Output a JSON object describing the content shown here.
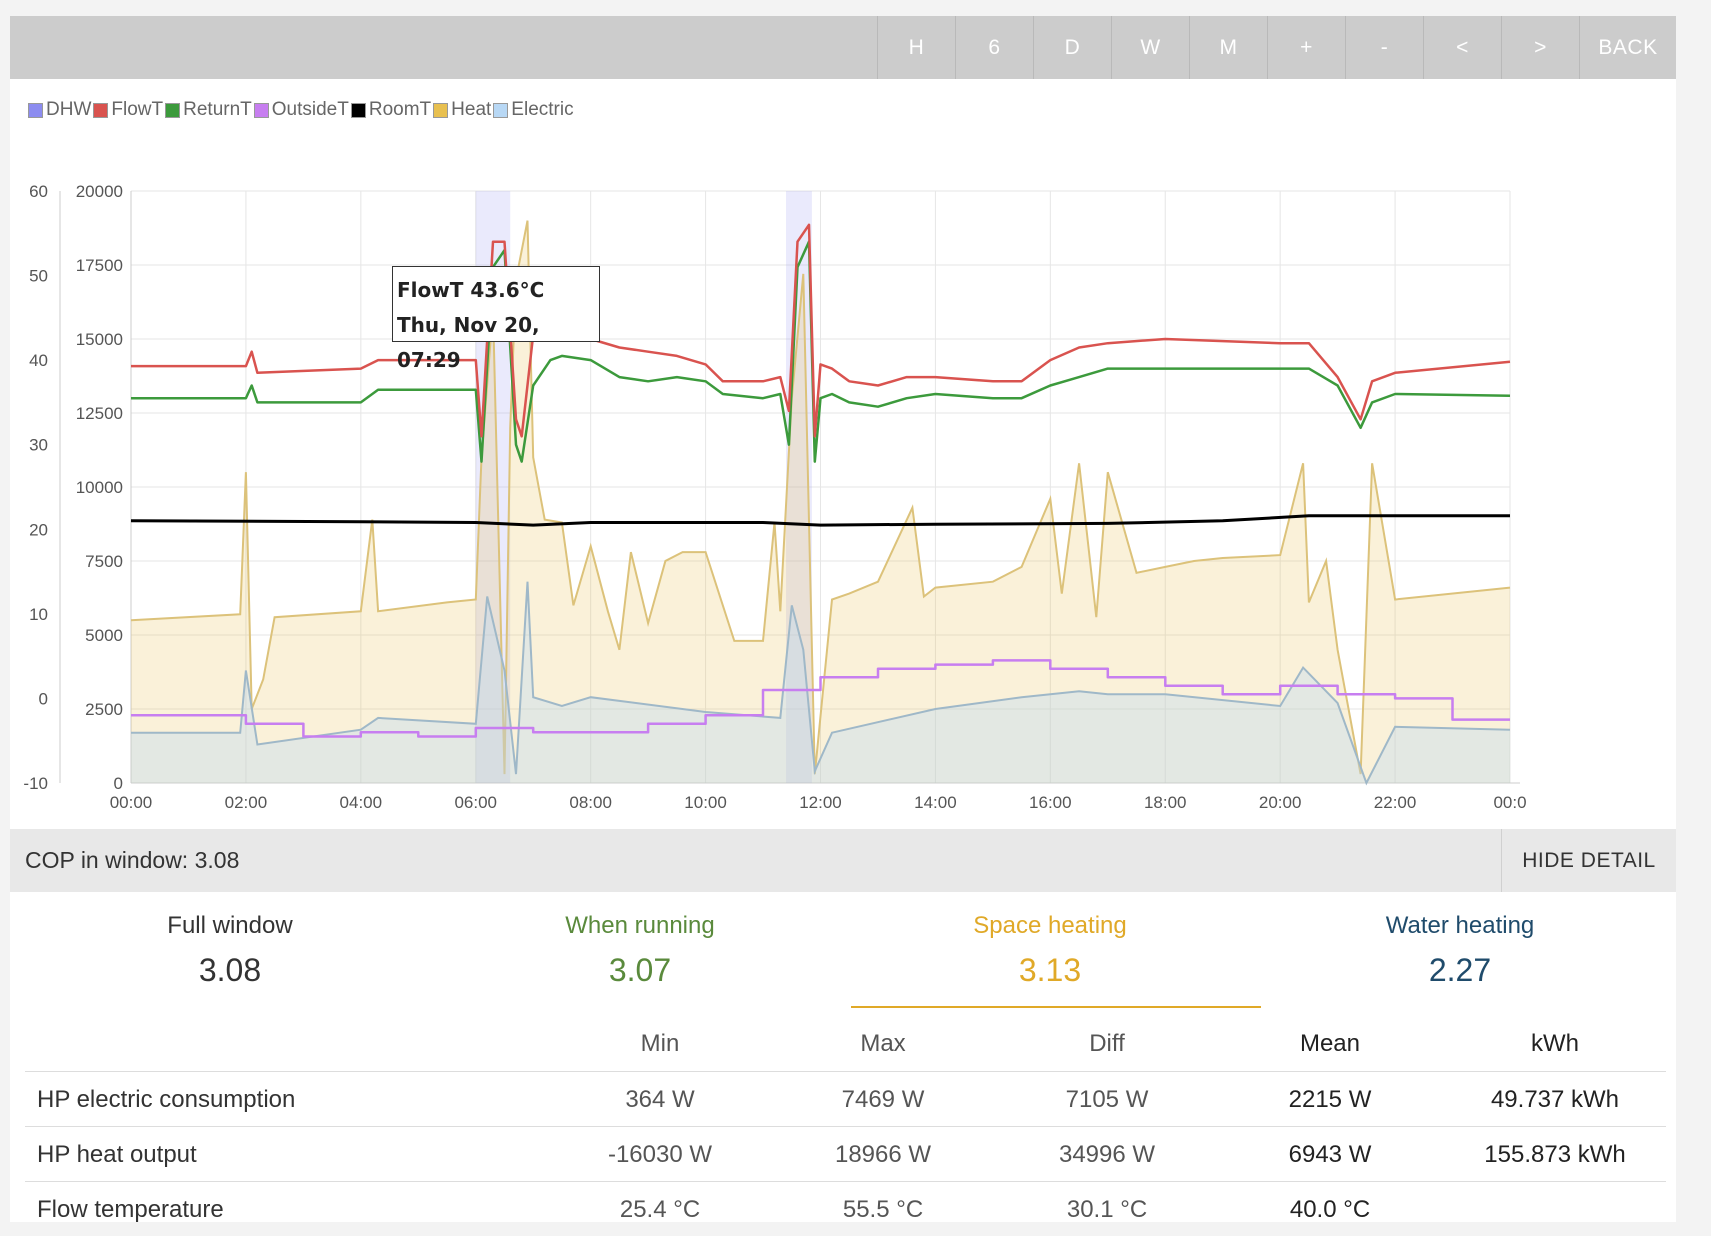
{
  "toolbar": {
    "buttons": [
      "H",
      "6",
      "D",
      "W",
      "M",
      "+",
      "-",
      "<",
      ">",
      "BACK"
    ]
  },
  "legend": [
    {
      "name": "DHW",
      "color": "#8c8cf0"
    },
    {
      "name": "FlowT",
      "color": "#d9534f"
    },
    {
      "name": "ReturnT",
      "color": "#3c9a3c"
    },
    {
      "name": "OutsideT",
      "color": "#c77ef0"
    },
    {
      "name": "RoomT",
      "color": "#000000"
    },
    {
      "name": "Heat",
      "color": "#e8c050"
    },
    {
      "name": "Electric",
      "color": "#b8d8f5"
    }
  ],
  "tooltip": {
    "line1": "FlowT 43.6°C",
    "line2": "Thu, Nov 20, 07:29"
  },
  "chart_data": {
    "type": "line",
    "x_unit": "hours",
    "x_ticks": [
      "00:00",
      "02:00",
      "04:00",
      "06:00",
      "08:00",
      "10:00",
      "12:00",
      "14:00",
      "16:00",
      "18:00",
      "20:00",
      "22:00",
      "00:0"
    ],
    "y_left_ticks": [
      "60",
      "50",
      "40",
      "30",
      "20",
      "10",
      "0",
      "-10"
    ],
    "y_left_range": [
      -10,
      60
    ],
    "y_right_ticks": [
      "20000",
      "17500",
      "15000",
      "12500",
      "10000",
      "7500",
      "5000",
      "2500",
      "0"
    ],
    "y_right_range": [
      0,
      20000
    ],
    "dhw_periods": [
      [
        6.0,
        6.6
      ],
      [
        11.4,
        11.85
      ]
    ],
    "series": [
      {
        "name": "FlowT",
        "axis": "left",
        "color": "#d9534f",
        "x": [
          0,
          2.0,
          2.1,
          2.2,
          4.0,
          4.3,
          6.0,
          6.1,
          6.3,
          6.5,
          6.7,
          6.8,
          7.0,
          7.3,
          7.5,
          8.0,
          8.5,
          9.0,
          9.5,
          10.0,
          10.3,
          11.0,
          11.3,
          11.45,
          11.6,
          11.8,
          11.9,
          12.0,
          12.2,
          12.5,
          13.0,
          13.5,
          14.0,
          15.0,
          15.5,
          16.0,
          16.5,
          17.0,
          18.0,
          20.0,
          20.5,
          21.0,
          21.4,
          21.6,
          22.0,
          24.0
        ],
        "y": [
          39.3,
          39.3,
          41.0,
          38.5,
          39.0,
          40.0,
          40.0,
          31,
          54,
          54,
          33,
          31,
          43,
          44,
          43.6,
          42.5,
          41.5,
          41.0,
          40.5,
          39.5,
          37.5,
          37.5,
          38,
          34,
          54,
          56,
          31,
          39.5,
          39.0,
          37.5,
          37.0,
          38.0,
          38.0,
          37.5,
          37.5,
          40.0,
          41.5,
          42.0,
          42.5,
          42.0,
          42.0,
          38.0,
          33.0,
          37.5,
          38.5,
          39.8
        ]
      },
      {
        "name": "ReturnT",
        "axis": "left",
        "color": "#3c9a3c",
        "x": [
          0,
          2.0,
          2.1,
          2.2,
          4.0,
          4.3,
          6.0,
          6.1,
          6.3,
          6.5,
          6.7,
          6.8,
          7.0,
          7.3,
          7.5,
          8.0,
          8.5,
          9.0,
          9.5,
          10.0,
          10.3,
          11.0,
          11.3,
          11.45,
          11.6,
          11.8,
          11.9,
          12.0,
          12.2,
          12.5,
          13.0,
          13.5,
          14.0,
          15.0,
          15.5,
          16.0,
          16.5,
          17.0,
          18.0,
          20.0,
          20.5,
          21.0,
          21.4,
          21.6,
          22.0,
          24.0
        ],
        "y": [
          35.5,
          35.5,
          37.0,
          35.0,
          35.0,
          36.5,
          36.5,
          28,
          51,
          53,
          30,
          28,
          37,
          40,
          40.5,
          40.0,
          38.0,
          37.5,
          38.0,
          37.5,
          36.0,
          35.5,
          36.0,
          30,
          51,
          54,
          28,
          35.5,
          36.0,
          35.0,
          34.5,
          35.5,
          36.0,
          35.5,
          35.5,
          37.0,
          38.0,
          39.0,
          39.0,
          39.0,
          39.0,
          37.0,
          32.0,
          35.0,
          36.0,
          35.8
        ]
      },
      {
        "name": "RoomT",
        "axis": "left",
        "color": "#000000",
        "x": [
          0,
          4.0,
          6.0,
          7.0,
          8.0,
          11.0,
          12.0,
          14.0,
          17.0,
          19.0,
          20.5,
          24.0
        ],
        "y": [
          21.0,
          20.9,
          20.8,
          20.5,
          20.8,
          20.8,
          20.5,
          20.6,
          20.7,
          21.0,
          21.6,
          21.6
        ]
      },
      {
        "name": "OutsideT",
        "axis": "left",
        "color": "#c77ef0",
        "x": [
          0,
          2.0,
          2.0,
          3.0,
          3.0,
          4.0,
          4.0,
          5.0,
          5.0,
          6.0,
          6.0,
          7.0,
          7.0,
          9.0,
          9.0,
          10.0,
          10.0,
          11.0,
          11.0,
          12.0,
          12.0,
          13.0,
          13.0,
          14.0,
          14.0,
          15.0,
          15.0,
          16.0,
          16.0,
          17.0,
          17.0,
          18.0,
          18.0,
          19.0,
          19.0,
          20.0,
          20.0,
          21.0,
          21.0,
          22.0,
          22.0,
          23.0,
          23.0,
          24.0
        ],
        "y": [
          -2,
          -2,
          -3,
          -3,
          -4.5,
          -4.5,
          -4,
          -4,
          -4.5,
          -4.5,
          -3.5,
          -3.5,
          -4,
          -4,
          -3,
          -3,
          -2,
          -2,
          1,
          1,
          2.5,
          2.5,
          3.5,
          3.5,
          4,
          4,
          4.5,
          4.5,
          3.5,
          3.5,
          2.5,
          2.5,
          1.5,
          1.5,
          0.5,
          0.5,
          1.5,
          1.5,
          0.5,
          0.5,
          0,
          0,
          -2.5,
          -2.5
        ]
      },
      {
        "name": "Heat",
        "axis": "right",
        "color": "#e8c050",
        "x": [
          0,
          1.9,
          2.0,
          2.1,
          2.3,
          2.5,
          4.0,
          4.2,
          4.3,
          5.5,
          6.0,
          6.1,
          6.3,
          6.5,
          6.6,
          6.7,
          6.9,
          7.0,
          7.2,
          7.5,
          7.7,
          8.0,
          8.3,
          8.5,
          8.7,
          9.0,
          9.3,
          9.6,
          10.0,
          10.5,
          11.0,
          11.2,
          11.3,
          11.5,
          11.7,
          11.9,
          12.2,
          12.5,
          13.0,
          13.6,
          13.8,
          14.0,
          15.0,
          15.5,
          16.0,
          16.2,
          16.5,
          16.8,
          17.0,
          17.5,
          18.0,
          18.5,
          19.0,
          20.0,
          20.4,
          20.5,
          20.8,
          21.0,
          21.4,
          21.6,
          22.0,
          24.0
        ],
        "y": [
          5500,
          5700,
          10500,
          2500,
          3500,
          5600,
          5800,
          8900,
          5800,
          6100,
          6200,
          11000,
          16000,
          300,
          12000,
          17000,
          19000,
          11000,
          8900,
          8800,
          6000,
          8000,
          5800,
          4500,
          7800,
          5400,
          7500,
          7800,
          7800,
          4800,
          4800,
          8800,
          5800,
          13000,
          17200,
          300,
          6200,
          6400,
          6800,
          9300,
          6300,
          6600,
          6800,
          7300,
          9600,
          6400,
          10800,
          5600,
          10500,
          7100,
          7300,
          7500,
          7600,
          7700,
          10800,
          6100,
          7500,
          4500,
          300,
          10800,
          6200,
          6600
        ]
      },
      {
        "name": "Electric",
        "axis": "right",
        "color": "#b8d8f5",
        "x": [
          0,
          1.9,
          2.0,
          2.2,
          4.0,
          4.3,
          6.0,
          6.2,
          6.5,
          6.7,
          6.9,
          7.0,
          7.5,
          8.0,
          10.0,
          11.3,
          11.5,
          11.7,
          11.9,
          12.2,
          14.0,
          15.5,
          16.5,
          17.0,
          17.5,
          18.0,
          20.0,
          20.4,
          21.0,
          21.5,
          22.0,
          24.0
        ],
        "y": [
          1700,
          1700,
          3800,
          1300,
          1800,
          2200,
          2000,
          6300,
          3800,
          300,
          6800,
          2900,
          2600,
          2900,
          2400,
          2200,
          6000,
          4500,
          400,
          1700,
          2500,
          2900,
          3100,
          3000,
          3000,
          3000,
          2600,
          3900,
          2700,
          0,
          1900,
          1800
        ]
      }
    ]
  },
  "cop_bar": {
    "label": "COP in window: ",
    "value": "3.08",
    "hide_label": "HIDE DETAIL"
  },
  "cop": [
    {
      "label": "Full window",
      "value": "3.08",
      "color": "#333333"
    },
    {
      "label": "When running",
      "value": "3.07",
      "color": "#5a8a3c"
    },
    {
      "label": "Space heating",
      "value": "3.13",
      "color": "#e0a928"
    },
    {
      "label": "Water heating",
      "value": "2.27",
      "color": "#1f4b6b"
    }
  ],
  "stats": {
    "headers": [
      "Min",
      "Max",
      "Diff",
      "Mean",
      "kWh"
    ],
    "rows": [
      {
        "name": "HP electric consumption",
        "min": "364 W",
        "max": "7469 W",
        "diff": "7105 W",
        "mean": "2215 W",
        "kwh": "49.737 kWh"
      },
      {
        "name": "HP heat output",
        "min": "-16030 W",
        "max": "18966 W",
        "diff": "34996 W",
        "mean": "6943 W",
        "kwh": "155.873 kWh"
      },
      {
        "name": "Flow temperature",
        "min": "25.4 °C",
        "max": "55.5 °C",
        "diff": "30.1 °C",
        "mean": "40.0 °C",
        "kwh": ""
      }
    ]
  }
}
